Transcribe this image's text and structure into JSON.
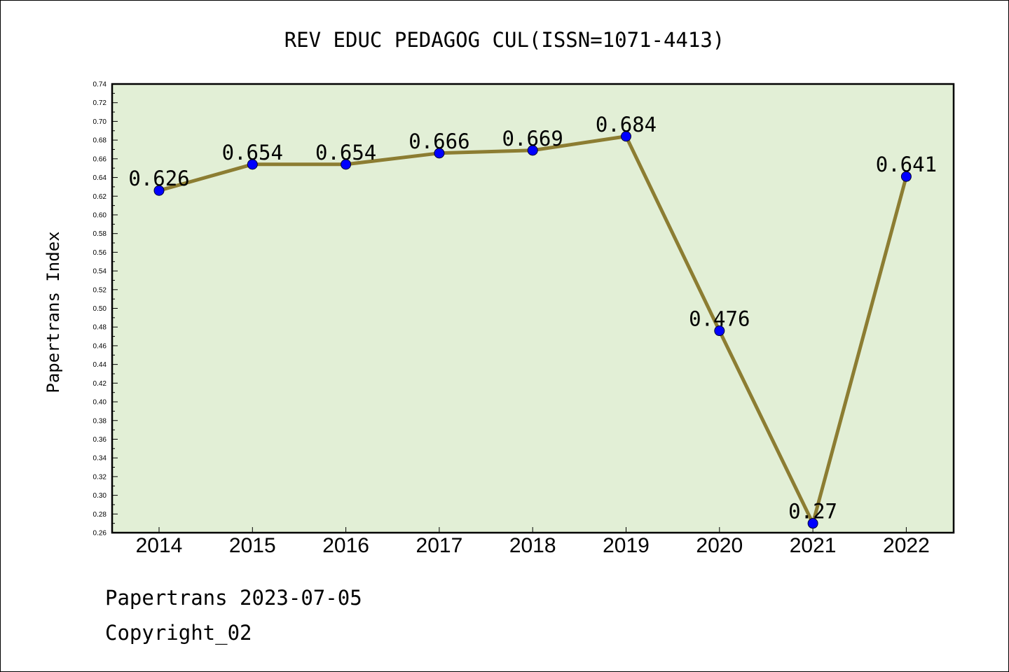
{
  "chart_data": {
    "type": "line",
    "title": "REV EDUC PEDAGOG CUL(ISSN=1071-4413)",
    "xlabel": "",
    "ylabel": "Papertrans Index",
    "categories": [
      "2014",
      "2015",
      "2016",
      "2017",
      "2018",
      "2019",
      "2020",
      "2021",
      "2022"
    ],
    "values": [
      0.626,
      0.654,
      0.654,
      0.666,
      0.669,
      0.684,
      0.476,
      0.27,
      0.641
    ],
    "data_labels": [
      "0.626",
      "0.654",
      "0.654",
      "0.666",
      "0.669",
      "0.684",
      "0.476",
      "0.27",
      "0.641"
    ],
    "ylim": [
      0.26,
      0.74
    ],
    "yticks": [
      "0.26",
      "0.28",
      "0.30",
      "0.32",
      "0.34",
      "0.36",
      "0.38",
      "0.40",
      "0.42",
      "0.44",
      "0.46",
      "0.48",
      "0.50",
      "0.52",
      "0.54",
      "0.56",
      "0.58",
      "0.60",
      "0.62",
      "0.64",
      "0.66",
      "0.68",
      "0.70",
      "0.72",
      "0.74"
    ],
    "grid": false,
    "colors": {
      "plot_background": "#e2efd6",
      "line": "#8c7d32",
      "marker": "#0000ff"
    }
  },
  "footer": {
    "line1": "Papertrans 2023-07-05",
    "line2": "Copyright_02"
  }
}
